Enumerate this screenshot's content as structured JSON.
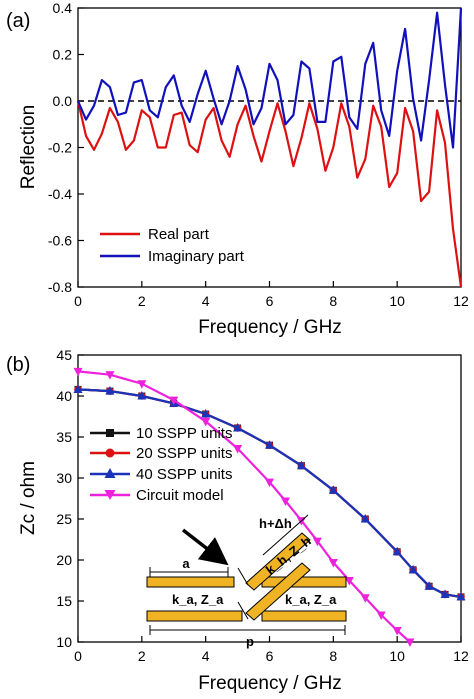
{
  "chart_data": [
    {
      "panel_label": "(a)",
      "type": "line",
      "xlabel": "Frequency / GHz",
      "ylabel": "Reflection",
      "xlim": [
        0,
        12
      ],
      "ylim": [
        -0.8,
        0.4
      ],
      "xticks": [
        "0",
        "2",
        "4",
        "6",
        "8",
        "10",
        "12"
      ],
      "yticks": [
        "-0.8",
        "-0.6",
        "-0.4",
        "-0.2",
        "0.0",
        "0.2",
        "0.4"
      ],
      "zero_reference": "dashed",
      "legend_position": "bottom-left",
      "grid": false,
      "series": [
        {
          "name": "Real part",
          "color": "#dd1111",
          "x": [
            0,
            0.25,
            0.5,
            0.75,
            1.0,
            1.25,
            1.5,
            1.75,
            2.0,
            2.25,
            2.5,
            2.75,
            3.0,
            3.25,
            3.5,
            3.75,
            4.0,
            4.25,
            4.5,
            4.75,
            5.0,
            5.25,
            5.5,
            5.75,
            6.0,
            6.25,
            6.5,
            6.75,
            7.0,
            7.25,
            7.5,
            7.75,
            8.0,
            8.25,
            8.5,
            8.75,
            9.0,
            9.25,
            9.5,
            9.75,
            10.0,
            10.25,
            10.5,
            10.75,
            11.0,
            11.25,
            11.5,
            11.75,
            12.0
          ],
          "y": [
            0.0,
            -0.15,
            -0.21,
            -0.14,
            -0.03,
            -0.09,
            -0.21,
            -0.17,
            -0.04,
            -0.07,
            -0.2,
            -0.2,
            -0.06,
            -0.05,
            -0.19,
            -0.22,
            -0.08,
            -0.03,
            -0.17,
            -0.24,
            -0.1,
            -0.02,
            -0.15,
            -0.26,
            -0.13,
            -0.01,
            -0.13,
            -0.28,
            -0.16,
            -0.01,
            -0.12,
            -0.3,
            -0.2,
            -0.01,
            -0.11,
            -0.33,
            -0.25,
            -0.02,
            -0.11,
            -0.37,
            -0.31,
            -0.03,
            -0.13,
            -0.43,
            -0.39,
            -0.04,
            -0.18,
            -0.55,
            -0.8
          ]
        },
        {
          "name": "Imaginary part",
          "color": "#1111bb",
          "x": [
            0,
            0.25,
            0.5,
            0.75,
            1.0,
            1.25,
            1.5,
            1.75,
            2.0,
            2.25,
            2.5,
            2.75,
            3.0,
            3.25,
            3.5,
            3.75,
            4.0,
            4.25,
            4.5,
            4.75,
            5.0,
            5.25,
            5.5,
            5.75,
            6.0,
            6.25,
            6.5,
            6.75,
            7.0,
            7.25,
            7.5,
            7.75,
            8.0,
            8.25,
            8.5,
            8.75,
            9.0,
            9.25,
            9.5,
            9.75,
            10.0,
            10.25,
            10.5,
            10.75,
            11.0,
            11.25,
            11.5,
            11.75,
            12.0
          ],
          "y": [
            0.0,
            -0.08,
            -0.02,
            0.09,
            0.06,
            -0.06,
            -0.05,
            0.08,
            0.09,
            -0.04,
            -0.07,
            0.06,
            0.11,
            -0.02,
            -0.09,
            0.03,
            0.13,
            0.01,
            -0.1,
            0.0,
            0.15,
            0.05,
            -0.1,
            -0.03,
            0.16,
            0.09,
            -0.1,
            -0.06,
            0.17,
            0.14,
            -0.09,
            -0.09,
            0.17,
            0.19,
            -0.07,
            -0.12,
            0.16,
            0.25,
            -0.04,
            -0.15,
            0.13,
            0.31,
            0.01,
            -0.17,
            0.09,
            0.38,
            0.07,
            -0.2,
            0.4
          ]
        }
      ]
    },
    {
      "panel_label": "(b)",
      "type": "line",
      "xlabel": "Frequency / GHz",
      "ylabel": "Zc / ohm",
      "xlim": [
        0,
        12
      ],
      "ylim": [
        10,
        45
      ],
      "xticks": [
        "0",
        "2",
        "4",
        "6",
        "8",
        "10",
        "12"
      ],
      "yticks": [
        "10",
        "15",
        "20",
        "25",
        "30",
        "35",
        "40",
        "45"
      ],
      "legend_position": "middle-left",
      "grid": false,
      "series": [
        {
          "name": "10 SSPP units",
          "color": "#111111",
          "marker": "square",
          "x": [
            0,
            1,
            2,
            3,
            4,
            5,
            6,
            7,
            8,
            9,
            10,
            10.5,
            11,
            11.5,
            12
          ],
          "y": [
            40.8,
            40.6,
            40.0,
            39.1,
            37.8,
            36.1,
            34.0,
            31.5,
            28.5,
            25.0,
            21.0,
            18.8,
            16.8,
            15.8,
            15.5
          ]
        },
        {
          "name": "20 SSPP units",
          "color": "#dd1111",
          "marker": "circle",
          "x": [
            0,
            1,
            2,
            3,
            4,
            5,
            6,
            7,
            8,
            9,
            10,
            10.5,
            11,
            11.5,
            12
          ],
          "y": [
            40.8,
            40.6,
            40.0,
            39.1,
            37.8,
            36.1,
            34.0,
            31.5,
            28.5,
            25.0,
            21.0,
            18.8,
            16.8,
            15.8,
            15.5
          ]
        },
        {
          "name": "40 SSPP units",
          "color": "#1a33bb",
          "marker": "triangle-up",
          "x": [
            0,
            1,
            2,
            3,
            4,
            5,
            6,
            7,
            8,
            9,
            10,
            10.5,
            11,
            11.5,
            12
          ],
          "y": [
            40.8,
            40.6,
            40.0,
            39.1,
            37.8,
            36.1,
            34.0,
            31.5,
            28.5,
            25.0,
            21.0,
            18.8,
            16.8,
            15.8,
            15.5
          ]
        },
        {
          "name": "Circuit model",
          "color": "#ee22dd",
          "marker": "triangle-down",
          "x": [
            0,
            1,
            2,
            3,
            4,
            5,
            6,
            6.5,
            7,
            7.5,
            8,
            8.5,
            9,
            9.5,
            10,
            10.4
          ],
          "y": [
            43.0,
            42.6,
            41.5,
            39.5,
            36.9,
            33.6,
            29.5,
            27.2,
            24.8,
            22.3,
            19.7,
            17.5,
            15.4,
            13.3,
            11.4,
            10.0
          ]
        }
      ],
      "inset_labels": [
        "h+Δh",
        "a",
        "k_h, Z_h",
        "k_a, Z_a",
        "k_a, Z_a",
        "p"
      ]
    }
  ]
}
